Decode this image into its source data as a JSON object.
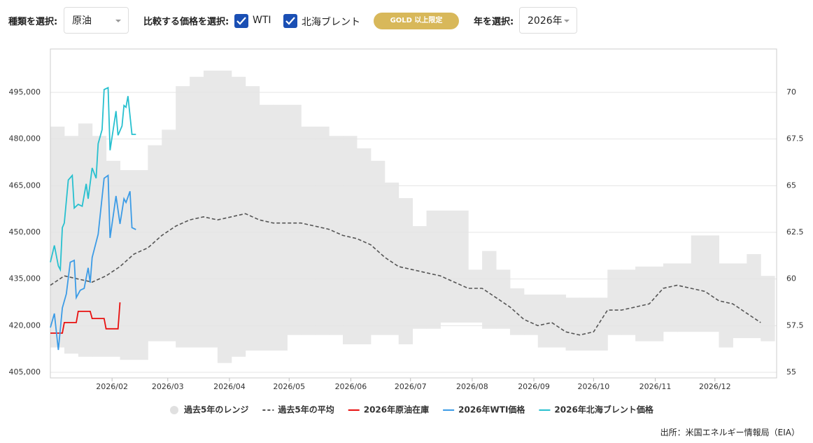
{
  "controls": {
    "type_label": "種類を選択:",
    "type_value": "原油",
    "compare_label": "比較する価格を選択:",
    "checkboxes": [
      "WTI",
      "北海ブレント"
    ],
    "badge": "GOLD 以上限定",
    "year_label": "年を選択:",
    "year_value": "2026年"
  },
  "chart_data": {
    "type": "line",
    "xlim": [
      0,
      365
    ],
    "xticks": [
      {
        "value": 31,
        "label": "2026/02"
      },
      {
        "value": 59,
        "label": "2026/03"
      },
      {
        "value": 90,
        "label": "2026/04"
      },
      {
        "value": 120,
        "label": "2026/05"
      },
      {
        "value": 151,
        "label": "2026/06"
      },
      {
        "value": 181,
        "label": "2026/07"
      },
      {
        "value": 212,
        "label": "2026/08"
      },
      {
        "value": 243,
        "label": "2026/09"
      },
      {
        "value": 273,
        "label": "2026/10"
      },
      {
        "value": 304,
        "label": "2026/11"
      },
      {
        "value": 334,
        "label": "2026/12"
      }
    ],
    "ylim": [
      403200,
      508950
    ],
    "yticks": [
      {
        "value": 405000,
        "label": "405,000"
      },
      {
        "value": 420000,
        "label": "420,000"
      },
      {
        "value": 435000,
        "label": "435,000"
      },
      {
        "value": 450000,
        "label": "450,000"
      },
      {
        "value": 465000,
        "label": "465,000"
      },
      {
        "value": 480000,
        "label": "480,000"
      },
      {
        "value": 495000,
        "label": "495,000"
      }
    ],
    "y2lim": [
      54.7,
      72.325
    ],
    "y2ticks": [
      55,
      57.5,
      60,
      62.5,
      65,
      67.5,
      70
    ],
    "grid": true,
    "series": [
      {
        "name": "過去5年のレンジ",
        "color": "#e8e8e8",
        "x": [
          0,
          7,
          14,
          21,
          28,
          35,
          42,
          49,
          56,
          63,
          70,
          77,
          84,
          91,
          98,
          105,
          112,
          119,
          126,
          133,
          140,
          147,
          154,
          161,
          168,
          175,
          182,
          189,
          196,
          203,
          210,
          217,
          224,
          231,
          238,
          245,
          252,
          259,
          266,
          273,
          280,
          287,
          294,
          301,
          308,
          315,
          322,
          329,
          336,
          343,
          350,
          357
        ],
        "low": [
          413000,
          411000,
          410000,
          410000,
          410000,
          409000,
          409000,
          415000,
          415000,
          413000,
          413000,
          413000,
          408000,
          410000,
          412000,
          412000,
          412000,
          417000,
          417000,
          417000,
          417000,
          414000,
          414000,
          417000,
          417000,
          414000,
          419000,
          419000,
          421000,
          421000,
          421000,
          419000,
          419000,
          417000,
          417000,
          413000,
          413000,
          412000,
          412000,
          412000,
          417000,
          417000,
          415000,
          415000,
          418000,
          418000,
          418000,
          418000,
          413000,
          416000,
          416000,
          415000
        ],
        "high": [
          484000,
          481000,
          485000,
          481000,
          473000,
          470000,
          470000,
          478000,
          483000,
          497000,
          500000,
          502000,
          502000,
          500000,
          497000,
          491000,
          491000,
          491000,
          484000,
          484000,
          481000,
          481000,
          477000,
          473000,
          466000,
          461000,
          452000,
          457000,
          457000,
          457000,
          438000,
          444000,
          438000,
          432000,
          430000,
          430000,
          430000,
          429000,
          429000,
          429000,
          438000,
          438000,
          439000,
          439000,
          440000,
          440000,
          449000,
          449000,
          440000,
          440000,
          443000,
          436000
        ]
      },
      {
        "name": "過去5年の平均",
        "color": "#555555",
        "dash": true,
        "x": [
          0,
          7,
          14,
          21,
          28,
          35,
          42,
          49,
          56,
          63,
          70,
          77,
          84,
          91,
          98,
          105,
          112,
          119,
          126,
          133,
          140,
          147,
          154,
          161,
          168,
          175,
          182,
          189,
          196,
          203,
          210,
          217,
          224,
          231,
          238,
          245,
          252,
          259,
          266,
          273,
          280,
          287,
          294,
          301,
          308,
          315,
          322,
          329,
          336,
          343,
          350,
          357
        ],
        "values": [
          433000,
          436000,
          435000,
          434000,
          436000,
          439000,
          443000,
          445000,
          449000,
          452000,
          454000,
          455000,
          454000,
          455000,
          456000,
          454000,
          453000,
          453000,
          453000,
          452000,
          451000,
          449000,
          448000,
          446000,
          442000,
          439000,
          438000,
          437000,
          436000,
          434000,
          432000,
          432000,
          429000,
          426000,
          422000,
          420000,
          421000,
          418000,
          417000,
          418000,
          425000,
          425000,
          426000,
          427000,
          432000,
          433000,
          432000,
          431000,
          428000,
          427000,
          424000,
          421000
        ]
      },
      {
        "name": "2026年原油在庫",
        "color": "#e8100f",
        "x": [
          0,
          6,
          7,
          13,
          14,
          20,
          21,
          27,
          28,
          34,
          35
        ],
        "values": [
          417600,
          417600,
          421000,
          421000,
          424600,
          424600,
          422300,
          422300,
          419000,
          419000,
          427500
        ]
      },
      {
        "name": "2026年WTI価格",
        "color": "#3b9be6",
        "axis": "y2",
        "x": [
          0,
          2,
          4,
          6,
          8,
          10,
          12,
          13,
          15,
          17,
          19,
          20,
          21,
          24,
          27,
          29,
          30,
          32,
          33,
          35,
          37,
          38,
          40,
          41,
          43
        ],
        "values": [
          57.4,
          58.15,
          56.2,
          58.45,
          59.2,
          60.9,
          61.0,
          59.0,
          59.4,
          59.5,
          60.6,
          59.8,
          61.15,
          62.4,
          65.4,
          65.55,
          62.2,
          63.7,
          64.45,
          62.95,
          64.3,
          64.1,
          64.7,
          62.75,
          62.65
        ]
      },
      {
        "name": "2026年北海ブレント価格",
        "color": "#27c0cf",
        "axis": "y2",
        "x": [
          0,
          2,
          4,
          5,
          6,
          7,
          9,
          11,
          12,
          14,
          16,
          18,
          19,
          21,
          23,
          24,
          26,
          27,
          29,
          30,
          32,
          33,
          34,
          36,
          37,
          38,
          39,
          41,
          43
        ],
        "values": [
          60.9,
          61.8,
          60.7,
          60.5,
          62.75,
          63.0,
          65.3,
          65.55,
          63.8,
          64.0,
          63.9,
          65.1,
          64.3,
          65.95,
          65.4,
          67.25,
          68.0,
          70.15,
          70.25,
          66.9,
          68.3,
          69.0,
          67.7,
          68.2,
          69.3,
          69.2,
          69.8,
          67.75,
          67.75
        ]
      }
    ]
  },
  "source": "出所：米国エネルギー情報局（EIA）"
}
